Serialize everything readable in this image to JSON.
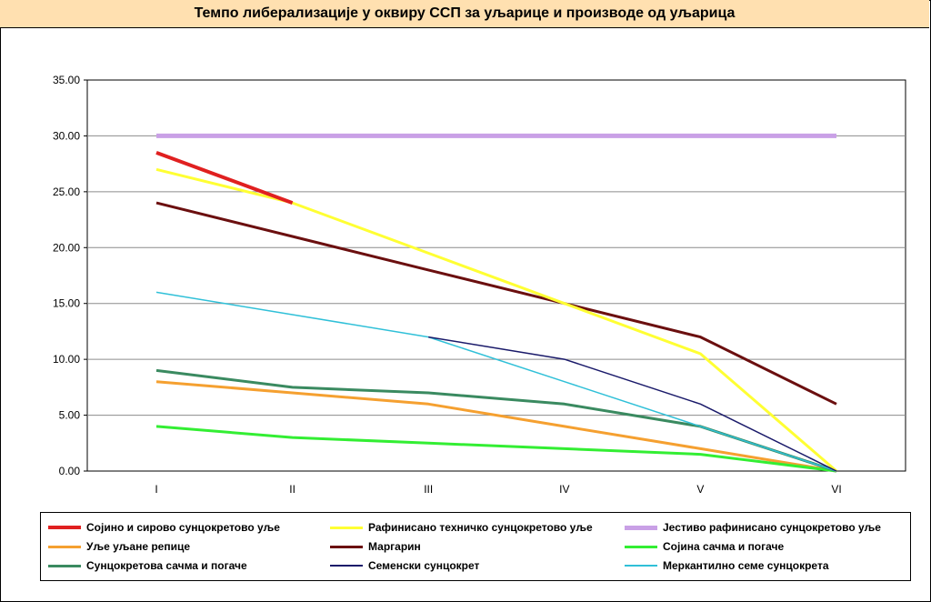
{
  "title": "Темпо либерализације у оквиру ССП за уљарице и производе од уљарица",
  "chart_data": {
    "type": "line",
    "categories": [
      "I",
      "II",
      "III",
      "IV",
      "V",
      "VI"
    ],
    "y_ticks": [
      "0.00",
      "5.00",
      "10.00",
      "15.00",
      "20.00",
      "25.00",
      "30.00",
      "35.00"
    ],
    "ylim": [
      0,
      35
    ],
    "grid": true,
    "legend_position": "bottom",
    "series": [
      {
        "name": "Сојино и сирово сунцокретово уље",
        "color": "#e02020",
        "width": 4,
        "values": [
          28.5,
          24,
          null,
          null,
          null,
          null
        ]
      },
      {
        "name": "Рафинисано техничко сунцокретово уље",
        "color": "#ffff33",
        "width": 3,
        "values": [
          27,
          24,
          19.5,
          15,
          10.5,
          0
        ]
      },
      {
        "name": "Јестиво рафинисано сунцокретово уље",
        "color": "#c9a0e6",
        "width": 5,
        "values": [
          30,
          30,
          30,
          30,
          30,
          30
        ]
      },
      {
        "name": "Уље уљане репице",
        "color": "#f5a030",
        "width": 3,
        "values": [
          8,
          7,
          6,
          4,
          2,
          0
        ]
      },
      {
        "name": "Маргарин",
        "color": "#6b0f0f",
        "width": 3,
        "values": [
          24,
          21,
          18,
          15,
          12,
          6
        ]
      },
      {
        "name": "Сојина сачма и погаче",
        "color": "#33ee33",
        "width": 3,
        "values": [
          4,
          3,
          2.5,
          2,
          1.5,
          0
        ]
      },
      {
        "name": "Сунцокретова сачма и погаче",
        "color": "#3a8a60",
        "width": 3,
        "values": [
          9,
          7.5,
          7,
          6,
          4,
          0
        ]
      },
      {
        "name": "Семенски сунцокрет",
        "color": "#1a1a6a",
        "width": 1.5,
        "values": [
          null,
          null,
          12,
          10,
          6,
          0
        ]
      },
      {
        "name": "Меркантилно семе сунцокрета",
        "color": "#30c0d8",
        "width": 1.5,
        "values": [
          16,
          14,
          12,
          8,
          4,
          0
        ]
      }
    ]
  }
}
